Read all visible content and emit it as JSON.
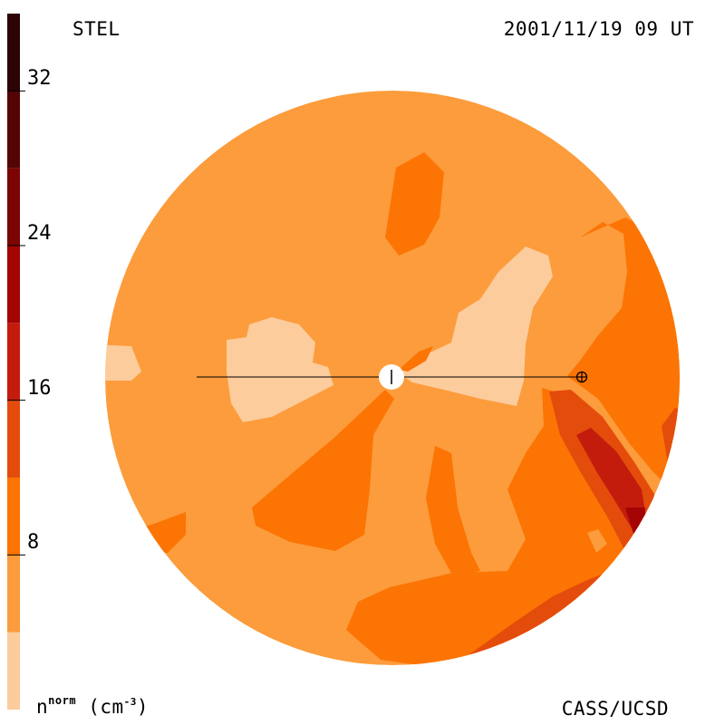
{
  "header": {
    "source": "STEL",
    "timestamp": "2001/11/19 09 UT"
  },
  "footer": {
    "credit": "CASS/UCSD",
    "units_base": "n",
    "units_sup": "norm",
    "units_open": " (cm",
    "units_exp": "-3",
    "units_close": ")"
  },
  "colorbar": {
    "range": [
      0,
      36
    ],
    "ticks": [
      {
        "value": 8,
        "label": "8"
      },
      {
        "value": 16,
        "label": "16"
      },
      {
        "value": 24,
        "label": "24"
      },
      {
        "value": 32,
        "label": "32"
      }
    ],
    "bands": [
      {
        "from": 0,
        "to": 4,
        "color": "#fccc9c"
      },
      {
        "from": 4,
        "to": 8,
        "color": "#fc9c3c"
      },
      {
        "from": 8,
        "to": 12,
        "color": "#fc7404"
      },
      {
        "from": 12,
        "to": 16,
        "color": "#e44c0c"
      },
      {
        "from": 16,
        "to": 20,
        "color": "#c41c0c"
      },
      {
        "from": 20,
        "to": 24,
        "color": "#a40404"
      },
      {
        "from": 24,
        "to": 28,
        "color": "#7c0404"
      },
      {
        "from": 28,
        "to": 32,
        "color": "#540404"
      },
      {
        "from": 32,
        "to": 36,
        "color": "#2c0404"
      }
    ]
  },
  "map": {
    "background_color": "#fc9c3c",
    "sun_marker": "sun-symbol",
    "earth_marker": "earth-symbol"
  }
}
